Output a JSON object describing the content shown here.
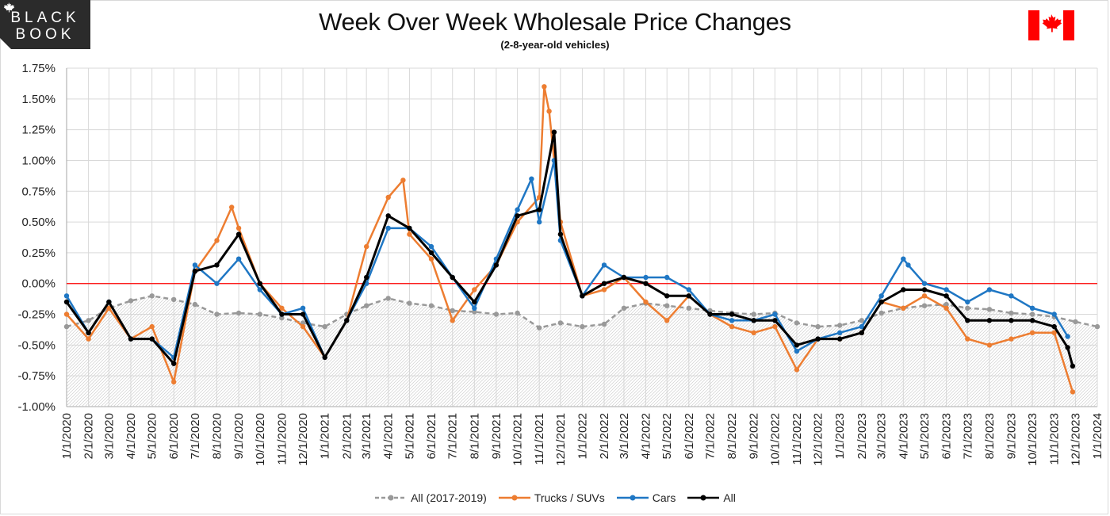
{
  "brand": {
    "line1": "BLACK",
    "line2": "BOOK"
  },
  "header": {
    "title": "Week Over Week Wholesale Price Changes",
    "subtitle": "(2-8-year-old vehicles)"
  },
  "colors": {
    "baseline": "#999999",
    "trucks": "#ed7d31",
    "cars": "#1f77c4",
    "all": "#000000",
    "zero_line": "#ff0000",
    "flag_red": "#ff0000"
  },
  "icons": {
    "brand_leaf": "maple-leaf-icon",
    "flag": "canada-flag-icon"
  },
  "chart_data": {
    "type": "line",
    "title": "Week Over Week Wholesale Price Changes",
    "subtitle": "(2-8-year-old vehicles)",
    "x_ticks": [
      "1/1/2020",
      "2/1/2020",
      "3/1/2020",
      "4/1/2020",
      "5/1/2020",
      "6/1/2020",
      "7/1/2020",
      "8/1/2020",
      "9/1/2020",
      "10/1/2020",
      "11/1/2020",
      "12/1/2020",
      "1/1/2021",
      "2/1/2021",
      "3/1/2021",
      "4/1/2021",
      "5/1/2021",
      "6/1/2021",
      "7/1/2021",
      "8/1/2021",
      "9/1/2021",
      "10/1/2021",
      "11/1/2021",
      "12/1/2021",
      "1/1/2022",
      "2/1/2022",
      "3/1/2022",
      "4/1/2022",
      "5/1/2022",
      "6/1/2022",
      "7/1/2022",
      "8/1/2022",
      "9/1/2022",
      "10/1/2022",
      "11/1/2022",
      "12/1/2022",
      "1/1/2023",
      "2/1/2023",
      "3/1/2023",
      "4/1/2023",
      "5/1/2023",
      "6/1/2023",
      "7/1/2023",
      "8/1/2023",
      "9/1/2023",
      "10/1/2023",
      "11/1/2023",
      "12/1/2023",
      "1/1/2024"
    ],
    "y_ticks": [
      "1.75%",
      "1.50%",
      "1.25%",
      "1.00%",
      "0.75%",
      "0.50%",
      "0.25%",
      "0.00%",
      "-0.25%",
      "-0.50%",
      "-0.75%",
      "-1.00%"
    ],
    "ylim": [
      -1.0,
      1.75
    ],
    "y_unit": "%",
    "xlim": [
      "1/1/2020",
      "1/1/2024"
    ],
    "grid": {
      "horizontal": true,
      "vertical": true
    },
    "legend_position": "bottom",
    "series": [
      {
        "name": "All (2017-2019)",
        "key": "baseline",
        "style": "dashed",
        "x": [
          "1/1/2020",
          "2/1/2020",
          "3/1/2020",
          "4/1/2020",
          "5/1/2020",
          "6/1/2020",
          "7/1/2020",
          "8/1/2020",
          "9/1/2020",
          "10/1/2020",
          "11/1/2020",
          "12/1/2020",
          "1/1/2021",
          "2/1/2021",
          "3/1/2021",
          "4/1/2021",
          "5/1/2021",
          "6/1/2021",
          "7/1/2021",
          "8/1/2021",
          "9/1/2021",
          "10/1/2021",
          "11/1/2021",
          "12/1/2021",
          "1/1/2022",
          "2/1/2022",
          "3/1/2022",
          "4/1/2022",
          "5/1/2022",
          "6/1/2022",
          "7/1/2022",
          "8/1/2022",
          "9/1/2022",
          "10/1/2022",
          "11/1/2022",
          "12/1/2022",
          "1/1/2023",
          "2/1/2023",
          "3/1/2023",
          "4/1/2023",
          "5/1/2023",
          "6/1/2023",
          "7/1/2023",
          "8/1/2023",
          "9/1/2023",
          "10/1/2023",
          "11/1/2023",
          "12/1/2023",
          "1/1/2024"
        ],
        "values": [
          -0.35,
          -0.3,
          -0.2,
          -0.14,
          -0.1,
          -0.13,
          -0.17,
          -0.25,
          -0.24,
          -0.25,
          -0.28,
          -0.32,
          -0.35,
          -0.25,
          -0.18,
          -0.12,
          -0.16,
          -0.18,
          -0.22,
          -0.23,
          -0.25,
          -0.24,
          -0.36,
          -0.32,
          -0.35,
          -0.33,
          -0.2,
          -0.16,
          -0.18,
          -0.2,
          -0.22,
          -0.24,
          -0.25,
          -0.24,
          -0.32,
          -0.35,
          -0.34,
          -0.3,
          -0.24,
          -0.2,
          -0.18,
          -0.17,
          -0.2,
          -0.21,
          -0.24,
          -0.25,
          -0.27,
          -0.31,
          -0.35
        ]
      },
      {
        "name": "Trucks / SUVs",
        "key": "trucks",
        "style": "solid",
        "x": [
          "1/1/2020",
          "2/1/2020",
          "3/1/2020",
          "4/1/2020",
          "5/1/2020",
          "6/1/2020",
          "7/1/2020",
          "8/1/2020",
          "8/22/2020",
          "9/1/2020",
          "10/1/2020",
          "11/1/2020",
          "12/1/2020",
          "1/1/2021",
          "2/1/2021",
          "3/1/2021",
          "4/1/2021",
          "4/22/2021",
          "5/1/2021",
          "6/1/2021",
          "7/1/2021",
          "8/1/2021",
          "9/1/2021",
          "10/1/2021",
          "11/1/2021",
          "11/8/2021",
          "11/15/2021",
          "12/1/2021",
          "1/1/2022",
          "2/1/2022",
          "3/1/2022",
          "4/1/2022",
          "5/1/2022",
          "6/1/2022",
          "7/1/2022",
          "8/1/2022",
          "9/1/2022",
          "10/1/2022",
          "11/1/2022",
          "12/1/2022",
          "1/1/2023",
          "2/1/2023",
          "3/1/2023",
          "4/1/2023",
          "5/1/2023",
          "6/1/2023",
          "7/1/2023",
          "8/1/2023",
          "9/1/2023",
          "10/1/2023",
          "11/1/2023",
          "11/27/2023"
        ],
        "values": [
          -0.25,
          -0.45,
          -0.2,
          -0.45,
          -0.35,
          -0.8,
          0.1,
          0.35,
          0.62,
          0.45,
          0.0,
          -0.2,
          -0.35,
          -0.6,
          -0.3,
          0.3,
          0.7,
          0.84,
          0.4,
          0.2,
          -0.3,
          -0.05,
          0.15,
          0.5,
          0.7,
          1.6,
          1.4,
          0.5,
          -0.1,
          -0.05,
          0.05,
          -0.15,
          -0.3,
          -0.1,
          -0.25,
          -0.35,
          -0.4,
          -0.35,
          -0.7,
          -0.45,
          -0.45,
          -0.4,
          -0.15,
          -0.2,
          -0.1,
          -0.2,
          -0.45,
          -0.5,
          -0.45,
          -0.4,
          -0.4,
          -0.88
        ]
      },
      {
        "name": "Cars",
        "key": "cars",
        "style": "solid",
        "x": [
          "1/1/2020",
          "2/1/2020",
          "3/1/2020",
          "4/1/2020",
          "5/1/2020",
          "6/1/2020",
          "7/1/2020",
          "8/1/2020",
          "9/1/2020",
          "10/1/2020",
          "11/1/2020",
          "12/1/2020",
          "1/1/2021",
          "2/1/2021",
          "3/1/2021",
          "4/1/2021",
          "5/1/2021",
          "6/1/2021",
          "7/1/2021",
          "8/1/2021",
          "9/1/2021",
          "10/1/2021",
          "10/21/2021",
          "11/1/2021",
          "11/22/2021",
          "12/1/2021",
          "1/1/2022",
          "2/1/2022",
          "3/1/2022",
          "4/1/2022",
          "5/1/2022",
          "6/1/2022",
          "7/1/2022",
          "8/1/2022",
          "9/1/2022",
          "10/1/2022",
          "11/1/2022",
          "12/1/2022",
          "1/1/2023",
          "2/1/2023",
          "3/1/2023",
          "4/1/2023",
          "4/8/2023",
          "5/1/2023",
          "6/1/2023",
          "7/1/2023",
          "8/1/2023",
          "9/1/2023",
          "10/1/2023",
          "11/1/2023",
          "11/20/2023"
        ],
        "values": [
          -0.1,
          -0.4,
          -0.15,
          -0.45,
          -0.45,
          -0.6,
          0.15,
          0.0,
          0.2,
          -0.05,
          -0.25,
          -0.2,
          -0.6,
          -0.3,
          0.0,
          0.45,
          0.45,
          0.3,
          0.05,
          -0.2,
          0.2,
          0.6,
          0.85,
          0.5,
          1.0,
          0.35,
          -0.1,
          0.15,
          0.05,
          0.05,
          0.05,
          -0.05,
          -0.25,
          -0.3,
          -0.3,
          -0.25,
          -0.55,
          -0.45,
          -0.4,
          -0.35,
          -0.1,
          0.2,
          0.15,
          0.0,
          -0.05,
          -0.15,
          -0.05,
          -0.1,
          -0.2,
          -0.25,
          -0.43
        ]
      },
      {
        "name": "All",
        "key": "all",
        "style": "solid",
        "x": [
          "1/1/2020",
          "2/1/2020",
          "3/1/2020",
          "4/1/2020",
          "5/1/2020",
          "6/1/2020",
          "7/1/2020",
          "8/1/2020",
          "9/1/2020",
          "10/1/2020",
          "11/1/2020",
          "12/1/2020",
          "1/1/2021",
          "2/1/2021",
          "3/1/2021",
          "4/1/2021",
          "5/1/2021",
          "6/1/2021",
          "7/1/2021",
          "8/1/2021",
          "9/1/2021",
          "10/1/2021",
          "11/1/2021",
          "11/22/2021",
          "12/1/2021",
          "1/1/2022",
          "2/1/2022",
          "3/1/2022",
          "4/1/2022",
          "5/1/2022",
          "6/1/2022",
          "7/1/2022",
          "8/1/2022",
          "9/1/2022",
          "10/1/2022",
          "11/1/2022",
          "12/1/2022",
          "1/1/2023",
          "2/1/2023",
          "3/1/2023",
          "4/1/2023",
          "5/1/2023",
          "6/1/2023",
          "7/1/2023",
          "8/1/2023",
          "9/1/2023",
          "10/1/2023",
          "11/1/2023",
          "11/20/2023",
          "11/27/2023"
        ],
        "values": [
          -0.15,
          -0.4,
          -0.15,
          -0.45,
          -0.45,
          -0.65,
          0.1,
          0.15,
          0.4,
          0.0,
          -0.25,
          -0.25,
          -0.6,
          -0.3,
          0.05,
          0.55,
          0.45,
          0.25,
          0.05,
          -0.15,
          0.15,
          0.55,
          0.6,
          1.23,
          0.4,
          -0.1,
          0.0,
          0.05,
          0.0,
          -0.1,
          -0.1,
          -0.25,
          -0.25,
          -0.3,
          -0.3,
          -0.5,
          -0.45,
          -0.45,
          -0.4,
          -0.15,
          -0.05,
          -0.05,
          -0.1,
          -0.3,
          -0.3,
          -0.3,
          -0.3,
          -0.35,
          -0.52,
          -0.67
        ]
      }
    ]
  },
  "legend": {
    "items": [
      {
        "label": "All (2017-2019)"
      },
      {
        "label": "Trucks / SUVs"
      },
      {
        "label": "Cars"
      },
      {
        "label": "All"
      }
    ]
  }
}
